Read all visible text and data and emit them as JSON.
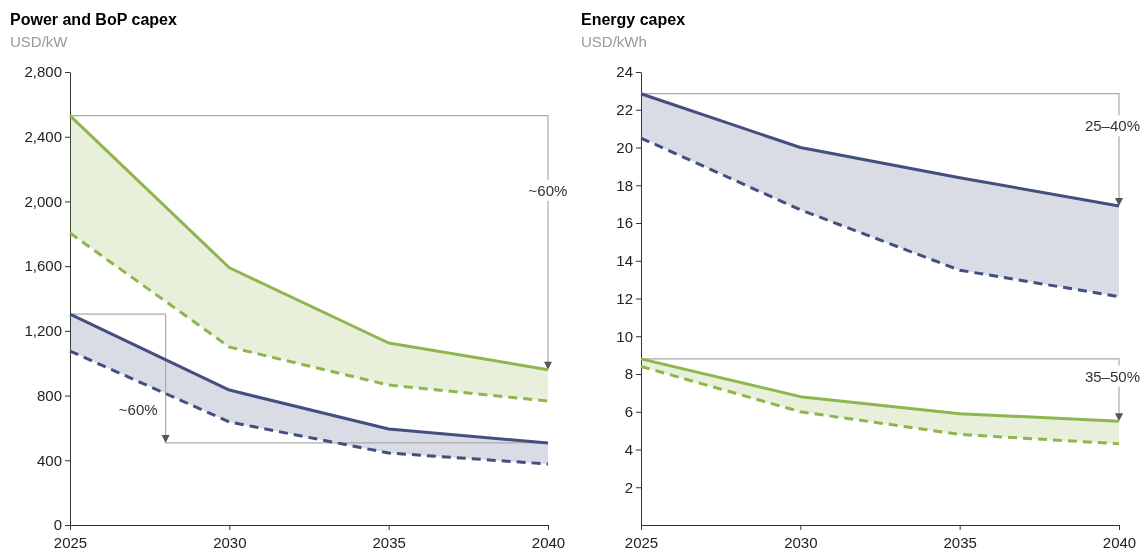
{
  "chart_data": [
    {
      "type": "line",
      "title": "Power and BoP capex",
      "ylabel": "USD/kW",
      "x": [
        2025,
        2030,
        2035,
        2040
      ],
      "xlim": [
        2025,
        2040
      ],
      "xticks": [
        2025,
        2030,
        2035,
        2040
      ],
      "ylim": [
        0,
        2800
      ],
      "yticks": [
        0,
        400,
        800,
        {
          "value": 1200,
          "label": "1,200"
        },
        {
          "value": 1600,
          "label": "1,600"
        },
        {
          "value": 2000,
          "label": "2,000"
        },
        {
          "value": 2400,
          "label": "2,400"
        },
        {
          "value": 2800,
          "label": "2,800"
        }
      ],
      "series": [
        {
          "color": "#8db64e",
          "values": [
            2530,
            1590,
            1125,
            960
          ],
          "upper": [
            2530,
            1590,
            1125,
            960
          ],
          "lower": [
            1805,
            1100,
            865,
            766
          ]
        },
        {
          "color": "#8db64e",
          "line_style": "dashed",
          "values": [
            1805,
            1100,
            865,
            766
          ]
        },
        {
          "color": "#434f7f",
          "values": [
            1304,
            834,
            593,
            507
          ],
          "upper": [
            1304,
            834,
            593,
            507
          ],
          "lower": [
            1075,
            637,
            445,
            377
          ]
        },
        {
          "color": "#434f7f",
          "line_style": "dashed",
          "values": [
            1075,
            637,
            445,
            377
          ]
        }
      ],
      "annotations": [
        "~60%",
        "~60%"
      ]
    },
    {
      "type": "line",
      "title": "Energy capex",
      "ylabel": "USD/kWh",
      "x": [
        2025,
        2030,
        2035,
        2040
      ],
      "xlim": [
        2025,
        2040
      ],
      "xticks": [
        2025,
        2030,
        2035,
        2040
      ],
      "ylim": [
        0,
        24
      ],
      "yticks": [
        2,
        4,
        6,
        8,
        10,
        12,
        14,
        16,
        18,
        20,
        22,
        24
      ],
      "series": [
        {
          "color": "#434f7f",
          "values": [
            22.85,
            20.0,
            18.4,
            16.9
          ],
          "upper": [
            22.85,
            20.0,
            18.4,
            16.9
          ],
          "lower": [
            20.5,
            16.7,
            13.5,
            12.1
          ]
        },
        {
          "color": "#434f7f",
          "line_style": "dashed",
          "values": [
            20.5,
            16.7,
            13.5,
            12.1
          ]
        },
        {
          "color": "#8db64e",
          "values": [
            8.8,
            6.8,
            5.9,
            5.5
          ],
          "upper": [
            8.8,
            6.8,
            5.9,
            5.5
          ],
          "lower": [
            8.4,
            6.0,
            4.8,
            4.3
          ]
        },
        {
          "color": "#8db64e",
          "line_style": "dashed",
          "values": [
            8.4,
            6.0,
            4.8,
            4.3
          ]
        }
      ],
      "annotations": [
        "25–40%",
        "35–50%"
      ]
    }
  ]
}
